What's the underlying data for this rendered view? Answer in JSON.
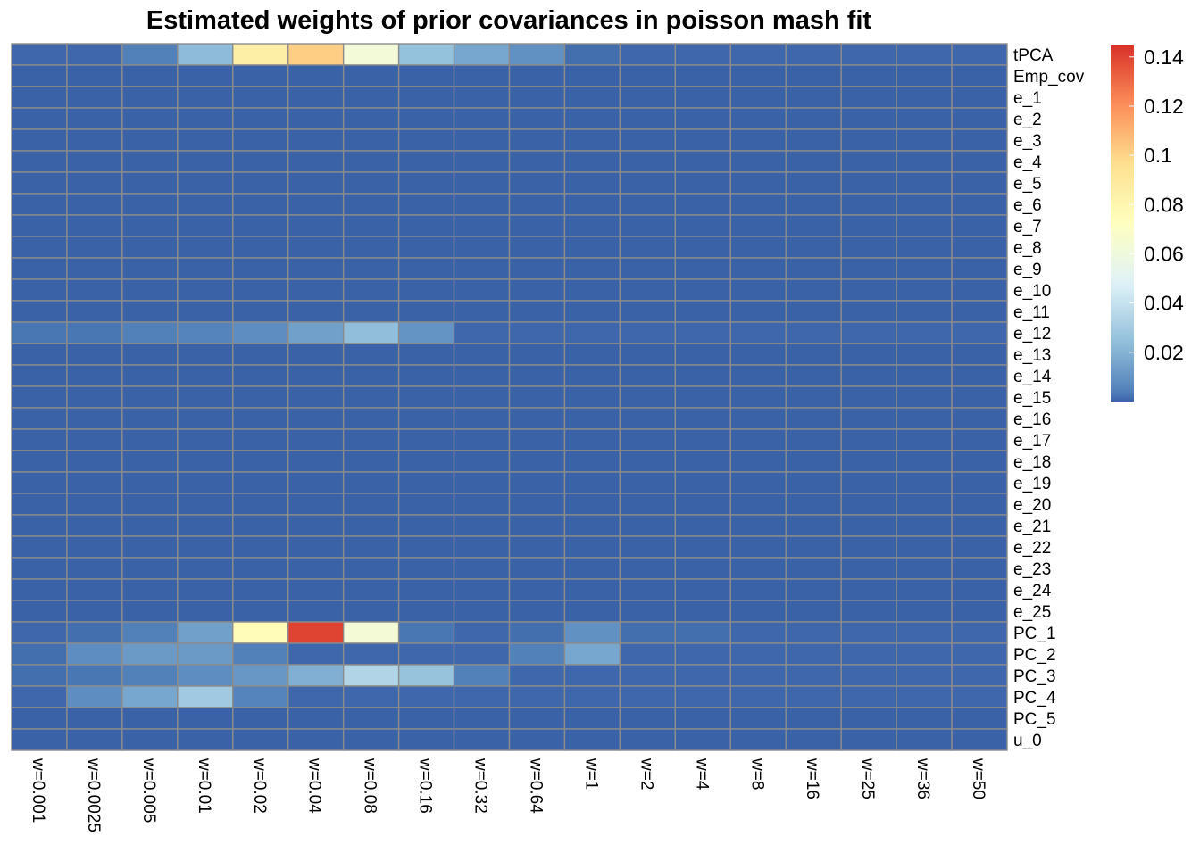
{
  "chart_data": {
    "type": "heatmap",
    "title": "Estimated weights of prior covariances in poisson mash fit",
    "xlabel": "",
    "ylabel": "",
    "x_categories": [
      "w=0.001",
      "w=0.0025",
      "w=0.005",
      "w=0.01",
      "w=0.02",
      "w=0.04",
      "w=0.08",
      "w=0.16",
      "w=0.32",
      "w=0.64",
      "w=1",
      "w=2",
      "w=4",
      "w=8",
      "w=16",
      "w=25",
      "w=36",
      "w=50"
    ],
    "y_categories": [
      "tPCA",
      "Emp_cov",
      "e_1",
      "e_2",
      "e_3",
      "e_4",
      "e_5",
      "e_6",
      "e_7",
      "e_8",
      "e_9",
      "e_10",
      "e_11",
      "e_12",
      "e_13",
      "e_14",
      "e_15",
      "e_16",
      "e_17",
      "e_18",
      "e_19",
      "e_20",
      "e_21",
      "e_22",
      "e_23",
      "e_24",
      "e_25",
      "PC_1",
      "PC_2",
      "PC_3",
      "PC_4",
      "PC_5",
      "u_0"
    ],
    "values": [
      [
        0.001,
        0.001,
        0.004,
        0.023,
        0.085,
        0.102,
        0.062,
        0.025,
        0.016,
        0.009,
        0.002,
        0.001,
        0.001,
        0.001,
        0.001,
        0.001,
        0.001,
        0.001
      ],
      [
        0,
        0,
        0,
        0,
        0,
        0,
        0,
        0,
        0,
        0,
        0,
        0,
        0,
        0,
        0,
        0,
        0,
        0
      ],
      [
        0,
        0,
        0,
        0,
        0,
        0,
        0,
        0,
        0,
        0,
        0,
        0,
        0,
        0,
        0,
        0,
        0,
        0
      ],
      [
        0,
        0,
        0,
        0,
        0,
        0,
        0,
        0,
        0,
        0,
        0,
        0,
        0,
        0,
        0,
        0,
        0,
        0
      ],
      [
        0,
        0,
        0,
        0,
        0,
        0,
        0,
        0,
        0,
        0,
        0,
        0,
        0,
        0,
        0,
        0,
        0,
        0
      ],
      [
        0,
        0,
        0,
        0,
        0,
        0,
        0,
        0,
        0,
        0,
        0,
        0,
        0,
        0,
        0,
        0,
        0,
        0
      ],
      [
        0,
        0,
        0,
        0,
        0,
        0,
        0,
        0,
        0,
        0,
        0,
        0,
        0,
        0,
        0,
        0,
        0,
        0
      ],
      [
        0,
        0,
        0,
        0,
        0,
        0,
        0,
        0,
        0,
        0,
        0,
        0,
        0,
        0,
        0,
        0,
        0,
        0
      ],
      [
        0,
        0,
        0,
        0,
        0,
        0,
        0,
        0,
        0,
        0,
        0,
        0,
        0,
        0,
        0,
        0,
        0,
        0
      ],
      [
        0,
        0,
        0,
        0,
        0,
        0,
        0,
        0,
        0,
        0,
        0,
        0,
        0,
        0,
        0,
        0,
        0,
        0
      ],
      [
        0,
        0,
        0,
        0,
        0,
        0,
        0,
        0,
        0,
        0,
        0,
        0,
        0,
        0,
        0,
        0,
        0,
        0
      ],
      [
        0,
        0,
        0,
        0,
        0,
        0,
        0,
        0,
        0,
        0,
        0,
        0,
        0,
        0,
        0,
        0,
        0,
        0
      ],
      [
        0,
        0,
        0,
        0,
        0,
        0,
        0,
        0,
        0,
        0,
        0,
        0,
        0,
        0,
        0,
        0,
        0,
        0
      ],
      [
        0.003,
        0.003,
        0.004,
        0.005,
        0.008,
        0.014,
        0.024,
        0.01,
        0.001,
        0.001,
        0.001,
        0.001,
        0.001,
        0.001,
        0.001,
        0.001,
        0.001,
        0.001
      ],
      [
        0,
        0,
        0,
        0,
        0,
        0,
        0,
        0,
        0,
        0,
        0,
        0,
        0,
        0,
        0,
        0,
        0,
        0
      ],
      [
        0,
        0,
        0,
        0,
        0,
        0,
        0,
        0,
        0,
        0,
        0,
        0,
        0,
        0,
        0,
        0,
        0,
        0
      ],
      [
        0,
        0,
        0,
        0,
        0,
        0,
        0,
        0,
        0,
        0,
        0,
        0,
        0,
        0,
        0,
        0,
        0,
        0
      ],
      [
        0,
        0,
        0,
        0,
        0,
        0,
        0,
        0,
        0,
        0,
        0,
        0,
        0,
        0,
        0,
        0,
        0,
        0
      ],
      [
        0,
        0,
        0,
        0,
        0,
        0,
        0,
        0,
        0,
        0,
        0,
        0,
        0,
        0,
        0,
        0,
        0,
        0
      ],
      [
        0,
        0,
        0,
        0,
        0,
        0,
        0,
        0,
        0,
        0,
        0,
        0,
        0,
        0,
        0,
        0,
        0,
        0
      ],
      [
        0,
        0,
        0,
        0,
        0,
        0,
        0,
        0,
        0,
        0,
        0,
        0,
        0,
        0,
        0,
        0,
        0,
        0
      ],
      [
        0,
        0,
        0,
        0,
        0,
        0,
        0,
        0,
        0,
        0,
        0,
        0,
        0,
        0,
        0,
        0,
        0,
        0
      ],
      [
        0,
        0,
        0,
        0,
        0,
        0,
        0,
        0,
        0,
        0,
        0,
        0,
        0,
        0,
        0,
        0,
        0,
        0
      ],
      [
        0,
        0,
        0,
        0,
        0,
        0,
        0,
        0,
        0,
        0,
        0,
        0,
        0,
        0,
        0,
        0,
        0,
        0
      ],
      [
        0,
        0,
        0,
        0,
        0,
        0,
        0,
        0,
        0,
        0,
        0,
        0,
        0,
        0,
        0,
        0,
        0,
        0
      ],
      [
        0,
        0,
        0,
        0,
        0,
        0,
        0,
        0,
        0,
        0,
        0,
        0,
        0,
        0,
        0,
        0,
        0,
        0
      ],
      [
        0,
        0,
        0,
        0,
        0,
        0,
        0,
        0,
        0,
        0,
        0,
        0,
        0,
        0,
        0,
        0,
        0,
        0
      ],
      [
        0.001,
        0.002,
        0.004,
        0.014,
        0.075,
        0.14,
        0.063,
        0.003,
        0.001,
        0.002,
        0.009,
        0.002,
        0.002,
        0.001,
        0.001,
        0.001,
        0.001,
        0.001
      ],
      [
        0.002,
        0.008,
        0.012,
        0.012,
        0.004,
        0.001,
        0.001,
        0.001,
        0.001,
        0.004,
        0.016,
        0.001,
        0.001,
        0.001,
        0.001,
        0.001,
        0.001,
        0.001
      ],
      [
        0.002,
        0.003,
        0.004,
        0.008,
        0.011,
        0.019,
        0.034,
        0.026,
        0.004,
        0.001,
        0.001,
        0.001,
        0.001,
        0.001,
        0.001,
        0.001,
        0.001,
        0.001
      ],
      [
        0.001,
        0.008,
        0.016,
        0.029,
        0.005,
        0.001,
        0.001,
        0.001,
        0.001,
        0.001,
        0.001,
        0.001,
        0.001,
        0.001,
        0.001,
        0.001,
        0.001,
        0.001
      ],
      [
        0,
        0,
        0,
        0,
        0,
        0,
        0,
        0,
        0,
        0,
        0,
        0,
        0,
        0,
        0,
        0,
        0,
        0
      ],
      [
        0,
        0,
        0,
        0,
        0,
        0,
        0,
        0,
        0,
        0,
        0,
        0,
        0,
        0,
        0,
        0,
        0,
        0
      ]
    ],
    "color_scale": {
      "min": 0,
      "max": 0.145,
      "stops": [
        "#4575B4",
        "#91BFDB",
        "#E0F3F8",
        "#FFFFBF",
        "#FEE090",
        "#FC8D59",
        "#D73027"
      ],
      "low_color": "#3A62A7"
    },
    "legend": {
      "position": "right",
      "ticks": [
        {
          "value": 0.02,
          "label": "0.02"
        },
        {
          "value": 0.04,
          "label": "0.04"
        },
        {
          "value": 0.06,
          "label": "0.06"
        },
        {
          "value": 0.08,
          "label": "0.08"
        },
        {
          "value": 0.1,
          "label": "0.1"
        },
        {
          "value": 0.12,
          "label": "0.12"
        },
        {
          "value": 0.14,
          "label": "0.14"
        }
      ]
    },
    "cell_border_color": "#8C8C8C",
    "grid": false
  }
}
